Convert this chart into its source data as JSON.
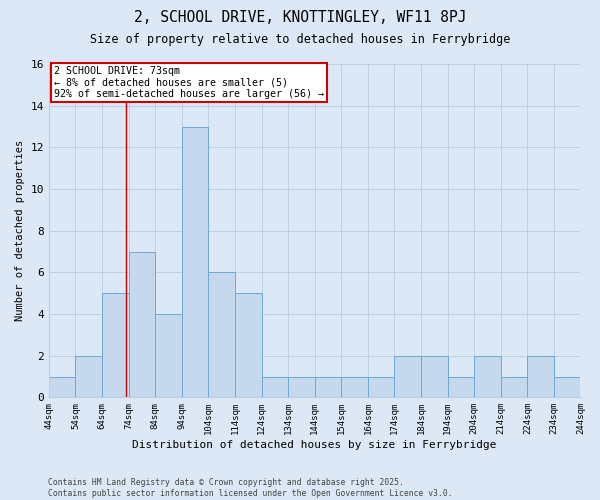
{
  "title_line1": "2, SCHOOL DRIVE, KNOTTINGLEY, WF11 8PJ",
  "title_line2": "Size of property relative to detached houses in Ferrybridge",
  "xlabel": "Distribution of detached houses by size in Ferrybridge",
  "ylabel": "Number of detached properties",
  "footer": "Contains HM Land Registry data © Crown copyright and database right 2025.\nContains public sector information licensed under the Open Government Licence v3.0.",
  "bin_starts": [
    44,
    54,
    64,
    74,
    84,
    94,
    104,
    114,
    124,
    134,
    144,
    154,
    164,
    174,
    184,
    194,
    204,
    214,
    224,
    234
  ],
  "counts": [
    1,
    2,
    5,
    7,
    4,
    13,
    6,
    5,
    1,
    1,
    1,
    1,
    1,
    2,
    2,
    1,
    2,
    1,
    2,
    1
  ],
  "bar_color": "#c5d8ee",
  "bar_edge_color": "#6aaad4",
  "property_size": 73,
  "annotation_line1": "2 SCHOOL DRIVE: 73sqm",
  "annotation_line2": "← 8% of detached houses are smaller (5)",
  "annotation_line3": "92% of semi-detached houses are larger (56) →",
  "vline_color": "#cc0000",
  "annotation_box_color": "#ffffff",
  "annotation_box_edge": "#cc0000",
  "bg_color": "#dce8f5",
  "plot_bg_color": "#dce8f5",
  "ylim": [
    0,
    16
  ],
  "xlim": [
    44,
    244
  ],
  "grid_color": "#b8cfe0"
}
